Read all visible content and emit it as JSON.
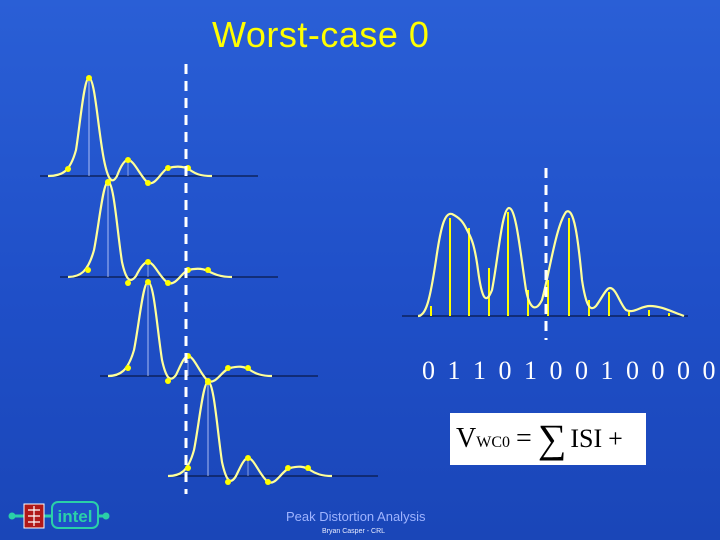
{
  "slide": {
    "title": "Worst-case 0",
    "bit_sequence": "0 1 1 0 1 0 0 1 0 0 0 0 0",
    "footer_title": "Peak Distortion Analysis",
    "footer_author": "Bryan Casper - CRL",
    "logo_text": "intel"
  },
  "formula": {
    "lhs": "V",
    "subscript": "WC0",
    "equals": "=",
    "sum_symbol": "∑",
    "term": "ISI",
    "plus": "+"
  },
  "colors": {
    "background": "#1f4fc8",
    "title": "#ffff00",
    "curve": "#ffff99",
    "stem": "#ffff00",
    "marker": "#ffff00",
    "dashed_line": "#ffffff",
    "baseline": "#0a1a4a"
  }
}
